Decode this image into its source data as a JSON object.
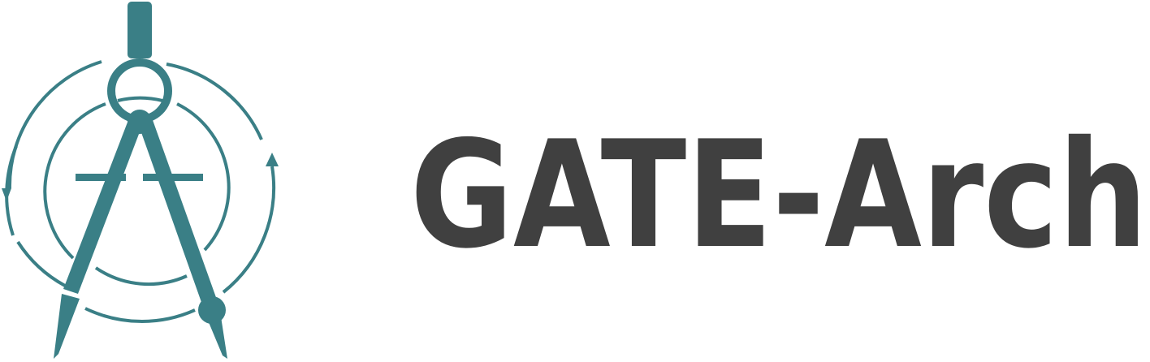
{
  "logo": {
    "text": "GATE-Arch"
  }
}
